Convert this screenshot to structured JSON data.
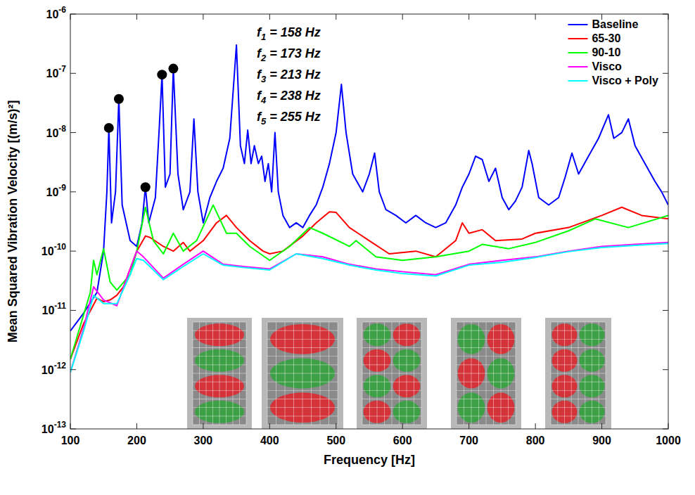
{
  "chart_data": {
    "type": "line",
    "xlabel": "Frequency [Hz]",
    "ylabel": "Mean Squared Vibration Velocity [(m/s)²]",
    "log": "y",
    "grid": false,
    "legend": "upper right",
    "xlim": [
      100,
      1000
    ],
    "ylim": [
      1e-13,
      1e-06
    ],
    "xticks": [
      100,
      200,
      300,
      400,
      500,
      600,
      700,
      800,
      900,
      1000
    ],
    "yticks": [
      {
        "value": 1e-13,
        "label": "10",
        "exponent": "-13"
      },
      {
        "value": 1e-12,
        "label": "10",
        "exponent": "-12"
      },
      {
        "value": 1e-11,
        "label": "10",
        "exponent": "-11"
      },
      {
        "value": 1e-10,
        "label": "10",
        "exponent": "-10"
      },
      {
        "value": 1e-09,
        "label": "10",
        "exponent": "-9"
      },
      {
        "value": 1e-08,
        "label": "10",
        "exponent": "-8"
      },
      {
        "value": 1e-07,
        "label": "10",
        "exponent": "-7"
      },
      {
        "value": 1e-06,
        "label": "10",
        "exponent": "-6"
      }
    ],
    "annotations": [
      {
        "symbol": "f",
        "subscript": "1",
        "text": " = 158 Hz"
      },
      {
        "symbol": "f",
        "subscript": "2",
        "text": " = 173 Hz"
      },
      {
        "symbol": "f",
        "subscript": "3",
        "text": " = 213 Hz"
      },
      {
        "symbol": "f",
        "subscript": "4",
        "text": " = 238 Hz"
      },
      {
        "symbol": "f",
        "subscript": "5",
        "text": " = 255 Hz"
      }
    ],
    "peaks": {
      "marker": "circle",
      "color": "#000000",
      "x": [
        158,
        173,
        213,
        238,
        255
      ],
      "values": [
        1.2e-08,
        3.7e-08,
        1.2e-09,
        9.5e-08,
        1.2e-07
      ]
    },
    "series": [
      {
        "name": "Baseline",
        "color": "#0000ff",
        "line_style": "solid",
        "x": [
          100,
          120,
          140,
          150,
          155,
          158,
          162,
          168,
          173,
          178,
          190,
          200,
          208,
          213,
          218,
          228,
          234,
          238,
          243,
          250,
          255,
          262,
          270,
          280,
          286,
          292,
          300,
          310,
          320,
          330,
          340,
          350,
          356,
          362,
          367,
          372,
          377,
          383,
          388,
          393,
          398,
          403,
          408,
          413,
          420,
          430,
          440,
          450,
          460,
          470,
          480,
          490,
          500,
          508,
          515,
          525,
          540,
          550,
          558,
          565,
          575,
          590,
          605,
          620,
          635,
          650,
          665,
          680,
          690,
          700,
          710,
          720,
          730,
          740,
          750,
          760,
          770,
          780,
          790,
          795,
          805,
          820,
          835,
          845,
          855,
          865,
          880,
          895,
          910,
          918,
          930,
          940,
          950,
          965,
          980,
          990,
          1000
        ],
        "values": [
          4.5e-12,
          9e-12,
          2e-11,
          1e-10,
          1e-09,
          1.2e-08,
          3e-10,
          1e-09,
          3.7e-08,
          6e-10,
          1.5e-10,
          1.2e-10,
          3e-10,
          1.2e-09,
          3e-10,
          8e-10,
          1.3e-08,
          9.5e-08,
          1.2e-09,
          2e-09,
          1.2e-07,
          2e-09,
          5e-10,
          1e-09,
          1.7e-08,
          1e-09,
          3e-10,
          8e-10,
          1.5e-09,
          2.5e-09,
          8e-09,
          3e-07,
          6e-09,
          3e-09,
          1.1e-08,
          3e-09,
          6e-09,
          3e-09,
          4e-09,
          1.5e-09,
          3e-09,
          1e-09,
          1e-08,
          1e-09,
          4e-10,
          2.5e-10,
          3e-10,
          2.5e-10,
          4e-10,
          6e-10,
          1.2e-09,
          3e-09,
          1e-08,
          6.5e-08,
          1e-08,
          2e-09,
          1e-09,
          2e-09,
          4.5e-09,
          1e-09,
          5e-10,
          4e-10,
          3e-10,
          4e-10,
          3e-10,
          2.5e-10,
          3e-10,
          6e-10,
          1.2e-09,
          2e-09,
          4e-09,
          3.5e-09,
          1.5e-09,
          2.5e-09,
          8e-10,
          5e-10,
          7e-10,
          1.2e-09,
          5e-09,
          3e-09,
          8e-10,
          6e-10,
          8e-10,
          1.8e-09,
          4.5e-09,
          2e-09,
          4e-09,
          8e-09,
          2e-08,
          8e-09,
          1e-08,
          1.7e-08,
          6e-09,
          3e-09,
          1.5e-09,
          1e-09,
          6e-10
        ]
      },
      {
        "name": "65-30",
        "color": "#ff0000",
        "line_style": "solid",
        "x": [
          100,
          120,
          140,
          150,
          160,
          170,
          180,
          190,
          200,
          213,
          220,
          240,
          255,
          270,
          280,
          300,
          320,
          335,
          350,
          370,
          390,
          400,
          420,
          450,
          470,
          490,
          500,
          520,
          550,
          580,
          620,
          650,
          680,
          690,
          700,
          720,
          740,
          780,
          800,
          850,
          900,
          930,
          960,
          1000
        ],
        "values": [
          1.5e-12,
          6e-12,
          1.6e-11,
          1.4e-11,
          1.5e-11,
          1.8e-11,
          2.5e-11,
          5e-11,
          1e-10,
          1.8e-10,
          1.7e-10,
          1.2e-10,
          1e-10,
          1.4e-10,
          1e-10,
          1.5e-10,
          3e-10,
          4e-10,
          2.5e-10,
          1.5e-10,
          1e-10,
          9e-11,
          1e-10,
          1.8e-10,
          3e-10,
          4.6e-10,
          4.5e-10,
          2.5e-10,
          1.5e-10,
          9e-11,
          1e-10,
          8e-11,
          1.5e-10,
          3e-10,
          2e-10,
          2.3e-10,
          1.5e-10,
          1.6e-10,
          2e-10,
          2.5e-10,
          4e-10,
          5.5e-10,
          4e-10,
          3.5e-10
        ]
      },
      {
        "name": "90-10",
        "color": "#00ff00",
        "line_style": "solid",
        "x": [
          100,
          130,
          135,
          140,
          150,
          160,
          170,
          190,
          200,
          213,
          225,
          240,
          255,
          270,
          290,
          315,
          335,
          350,
          370,
          400,
          430,
          460,
          480,
          520,
          530,
          560,
          600,
          650,
          700,
          720,
          760,
          800,
          850,
          890,
          940,
          1000
        ],
        "values": [
          1.5e-12,
          2e-11,
          7e-11,
          4e-11,
          1.1e-10,
          3e-11,
          2.2e-11,
          4e-11,
          1e-10,
          5.5e-10,
          1.5e-10,
          9e-11,
          2e-10,
          1e-10,
          1.5e-10,
          6e-10,
          2e-10,
          2e-10,
          1.2e-10,
          7e-11,
          1.2e-10,
          2.5e-10,
          2e-10,
          1.2e-10,
          1.5e-10,
          8e-11,
          7e-11,
          8e-11,
          1e-10,
          1.3e-10,
          1.1e-10,
          1.4e-10,
          2.2e-10,
          3.5e-10,
          2.5e-10,
          4e-10
        ]
      },
      {
        "name": "Visco",
        "color": "#ff00ff",
        "line_style": "solid",
        "x": [
          100,
          120,
          135,
          150,
          170,
          190,
          200,
          210,
          240,
          270,
          300,
          330,
          360,
          400,
          440,
          480,
          520,
          560,
          600,
          650,
          700,
          750,
          800,
          850,
          900,
          950,
          1000
        ],
        "values": [
          9e-13,
          5e-12,
          2.5e-11,
          1.5e-11,
          1.2e-11,
          5e-11,
          1e-10,
          8e-11,
          3.5e-11,
          6e-11,
          1e-10,
          6e-11,
          5.5e-11,
          5e-11,
          9e-11,
          8e-11,
          6e-11,
          5e-11,
          4.5e-11,
          4e-11,
          6e-11,
          7e-11,
          8e-11,
          1e-10,
          1.2e-10,
          1.3e-10,
          1.4e-10
        ]
      },
      {
        "name": "Visco + Poly",
        "color": "#00ffff",
        "line_style": "solid",
        "x": [
          100,
          120,
          135,
          150,
          170,
          190,
          200,
          210,
          240,
          270,
          300,
          330,
          360,
          400,
          440,
          480,
          520,
          560,
          600,
          650,
          700,
          750,
          800,
          850,
          900,
          950,
          1000
        ],
        "values": [
          9e-13,
          4.5e-12,
          1.8e-11,
          1.3e-11,
          1.3e-11,
          4e-11,
          7.5e-11,
          7e-11,
          3.3e-11,
          5.5e-11,
          9e-11,
          5.8e-11,
          5.3e-11,
          4.8e-11,
          9e-11,
          7.5e-11,
          5.8e-11,
          4.8e-11,
          4.2e-11,
          3.8e-11,
          5.8e-11,
          6.5e-11,
          7.8e-11,
          9.8e-11,
          1.15e-10,
          1.25e-10,
          1.35e-10
        ]
      }
    ]
  }
}
